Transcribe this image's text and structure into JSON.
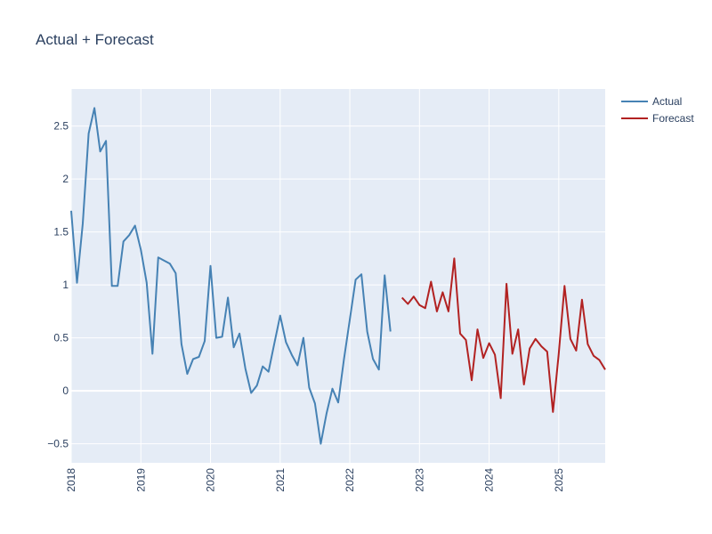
{
  "chart_data": {
    "type": "line",
    "title": "Actual + Forecast",
    "xlabel": "",
    "ylabel": "",
    "xlim": [
      "2018-01",
      "2025-09"
    ],
    "ylim": [
      -0.68,
      2.85
    ],
    "grid": true,
    "legend_placement": "top-right",
    "x_ticks": [
      "2018",
      "2019",
      "2020",
      "2021",
      "2022",
      "2023",
      "2024",
      "2025"
    ],
    "y_ticks": [
      "−0.5",
      "0",
      "0.5",
      "1",
      "1.5",
      "2",
      "2.5"
    ],
    "y_tick_values": [
      -0.5,
      0,
      0.5,
      1,
      1.5,
      2,
      2.5
    ],
    "colors": {
      "plot_bg": "#e5ecf6",
      "text": "#2a3f5f"
    },
    "series": [
      {
        "name": "Actual",
        "color": "#4682b4",
        "x": [
          "2018-01",
          "2018-02",
          "2018-03",
          "2018-04",
          "2018-05",
          "2018-06",
          "2018-07",
          "2018-08",
          "2018-09",
          "2018-10",
          "2018-11",
          "2018-12",
          "2019-01",
          "2019-02",
          "2019-03",
          "2019-04",
          "2019-05",
          "2019-06",
          "2019-07",
          "2019-08",
          "2019-09",
          "2019-10",
          "2019-11",
          "2019-12",
          "2020-01",
          "2020-02",
          "2020-03",
          "2020-04",
          "2020-05",
          "2020-06",
          "2020-07",
          "2020-08",
          "2020-09",
          "2020-10",
          "2020-11",
          "2020-12",
          "2021-01",
          "2021-02",
          "2021-03",
          "2021-04",
          "2021-05",
          "2021-06",
          "2021-07",
          "2021-08",
          "2021-09",
          "2021-10",
          "2021-11",
          "2021-12",
          "2022-01",
          "2022-02",
          "2022-03",
          "2022-04",
          "2022-05",
          "2022-06",
          "2022-07",
          "2022-08"
        ],
        "values": [
          1.7,
          1.02,
          1.58,
          2.43,
          2.67,
          2.26,
          2.36,
          0.99,
          0.99,
          1.41,
          1.47,
          1.56,
          1.33,
          1.02,
          0.35,
          1.26,
          1.23,
          1.2,
          1.11,
          0.44,
          0.16,
          0.3,
          0.32,
          0.47,
          1.18,
          0.5,
          0.51,
          0.88,
          0.41,
          0.54,
          0.21,
          -0.02,
          0.05,
          0.23,
          0.18,
          0.45,
          0.71,
          0.46,
          0.34,
          0.24,
          0.5,
          0.03,
          -0.12,
          -0.5,
          -0.21,
          0.02,
          -0.11,
          0.3,
          0.67,
          1.05,
          1.1,
          0.56,
          0.3,
          0.2,
          1.09,
          0.56
        ]
      },
      {
        "name": "Forecast",
        "color": "#b22222",
        "x": [
          "2022-10",
          "2022-11",
          "2022-12",
          "2023-01",
          "2023-02",
          "2023-03",
          "2023-04",
          "2023-05",
          "2023-06",
          "2023-07",
          "2023-08",
          "2023-09",
          "2023-10",
          "2023-11",
          "2023-12",
          "2024-01",
          "2024-02",
          "2024-03",
          "2024-04",
          "2024-05",
          "2024-06",
          "2024-07",
          "2024-08",
          "2024-09",
          "2024-10",
          "2024-11",
          "2024-12",
          "2025-01",
          "2025-02",
          "2025-03",
          "2025-04",
          "2025-05",
          "2025-06",
          "2025-07",
          "2025-08",
          "2025-09"
        ],
        "values": [
          0.88,
          0.82,
          0.89,
          0.81,
          0.78,
          1.03,
          0.75,
          0.93,
          0.75,
          1.25,
          0.54,
          0.48,
          0.1,
          0.58,
          0.31,
          0.45,
          0.34,
          -0.07,
          1.01,
          0.35,
          0.58,
          0.06,
          0.4,
          0.49,
          0.42,
          0.37,
          -0.2,
          0.35,
          0.99,
          0.49,
          0.38,
          0.86,
          0.44,
          0.33,
          0.29,
          0.2
        ]
      }
    ]
  }
}
